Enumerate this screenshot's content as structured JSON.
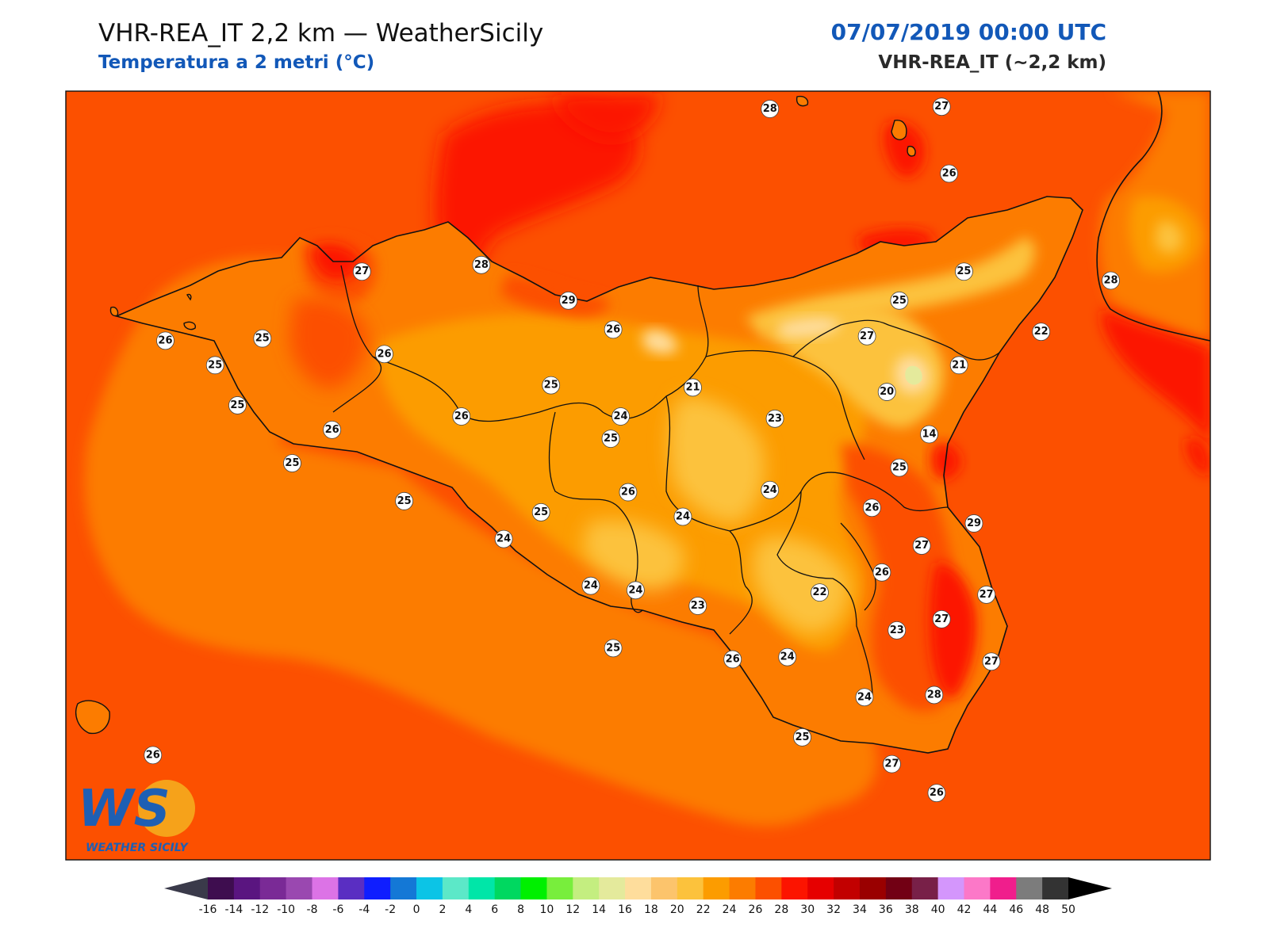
{
  "header": {
    "title": "VHR-REA_IT 2,2 km — WeatherSicily",
    "subtitle": "Temperatura a 2 metri (°C)",
    "datetime": "07/07/2019 00:00 UTC",
    "model": "VHR-REA_IT (~2,2 km)"
  },
  "logo": {
    "letters": "WS",
    "text": "WEATHER SICILY"
  },
  "colorbar": {
    "ticks": [
      "-16",
      "-14",
      "-12",
      "-10",
      "-8",
      "-6",
      "-4",
      "-2",
      "0",
      "2",
      "4",
      "6",
      "8",
      "10",
      "12",
      "14",
      "16",
      "18",
      "20",
      "22",
      "24",
      "26",
      "28",
      "30",
      "32",
      "34",
      "36",
      "38",
      "40",
      "42",
      "44",
      "46",
      "48",
      "50"
    ],
    "colors": [
      "#3e0d4f",
      "#5a1580",
      "#7a2a96",
      "#9a48b0",
      "#dc73e6",
      "#5a2ec2",
      "#0f1eff",
      "#1478d6",
      "#0cc4e6",
      "#5ce8c8",
      "#00e6a8",
      "#00d860",
      "#00f000",
      "#78ee3c",
      "#c4ee80",
      "#e4ea9c",
      "#fedd9c",
      "#fcc46c",
      "#fcc23c",
      "#fc9c00",
      "#fc7c00",
      "#fc5000",
      "#fc1400",
      "#e60000",
      "#c20000",
      "#9a0000",
      "#720014",
      "#782048",
      "#d496fc",
      "#fc78c8",
      "#f01e8c",
      "#7c7c7c",
      "#333333"
    ],
    "under_color": "#3a3a4a",
    "over_color": "#000000"
  },
  "stations": [
    {
      "v": "28",
      "lon": 14.53,
      "lat": 39.07
    },
    {
      "v": "27",
      "lon": 15.22,
      "lat": 39.08
    },
    {
      "v": "26",
      "lon": 15.25,
      "lat": 38.78
    },
    {
      "v": "27",
      "lon": 12.89,
      "lat": 38.34
    },
    {
      "v": "28",
      "lon": 13.37,
      "lat": 38.37
    },
    {
      "v": "29",
      "lon": 13.72,
      "lat": 38.21
    },
    {
      "v": "26",
      "lon": 13.9,
      "lat": 38.08
    },
    {
      "v": "27",
      "lon": 14.92,
      "lat": 38.05
    },
    {
      "v": "25",
      "lon": 15.31,
      "lat": 38.34
    },
    {
      "v": "25",
      "lon": 15.05,
      "lat": 38.21
    },
    {
      "v": "28",
      "lon": 15.9,
      "lat": 38.3
    },
    {
      "v": "22",
      "lon": 15.62,
      "lat": 38.07
    },
    {
      "v": "26",
      "lon": 12.1,
      "lat": 38.03
    },
    {
      "v": "25",
      "lon": 12.49,
      "lat": 38.04
    },
    {
      "v": "25",
      "lon": 12.3,
      "lat": 37.92
    },
    {
      "v": "26",
      "lon": 12.98,
      "lat": 37.97
    },
    {
      "v": "25",
      "lon": 13.65,
      "lat": 37.83
    },
    {
      "v": "21",
      "lon": 14.22,
      "lat": 37.82
    },
    {
      "v": "21",
      "lon": 15.29,
      "lat": 37.92
    },
    {
      "v": "20",
      "lon": 15.0,
      "lat": 37.8
    },
    {
      "v": "25",
      "lon": 12.39,
      "lat": 37.74
    },
    {
      "v": "26",
      "lon": 13.29,
      "lat": 37.69
    },
    {
      "v": "26",
      "lon": 12.77,
      "lat": 37.63
    },
    {
      "v": "24",
      "lon": 13.93,
      "lat": 37.69
    },
    {
      "v": "23",
      "lon": 14.55,
      "lat": 37.68
    },
    {
      "v": "25",
      "lon": 13.89,
      "lat": 37.59
    },
    {
      "v": "14",
      "lon": 15.17,
      "lat": 37.61
    },
    {
      "v": "25",
      "lon": 12.61,
      "lat": 37.48
    },
    {
      "v": "25",
      "lon": 15.05,
      "lat": 37.46
    },
    {
      "v": "26",
      "lon": 13.96,
      "lat": 37.35
    },
    {
      "v": "24",
      "lon": 14.53,
      "lat": 37.36
    },
    {
      "v": "25",
      "lon": 13.06,
      "lat": 37.31
    },
    {
      "v": "25",
      "lon": 13.61,
      "lat": 37.26
    },
    {
      "v": "24",
      "lon": 14.18,
      "lat": 37.24
    },
    {
      "v": "26",
      "lon": 14.94,
      "lat": 37.28
    },
    {
      "v": "29",
      "lon": 15.35,
      "lat": 37.21
    },
    {
      "v": "24",
      "lon": 13.46,
      "lat": 37.14
    },
    {
      "v": "27",
      "lon": 15.14,
      "lat": 37.11
    },
    {
      "v": "26",
      "lon": 14.98,
      "lat": 36.99
    },
    {
      "v": "24",
      "lon": 13.99,
      "lat": 36.91
    },
    {
      "v": "24",
      "lon": 13.81,
      "lat": 36.93
    },
    {
      "v": "22",
      "lon": 14.73,
      "lat": 36.9
    },
    {
      "v": "23",
      "lon": 14.24,
      "lat": 36.84
    },
    {
      "v": "27",
      "lon": 15.4,
      "lat": 36.89
    },
    {
      "v": "27",
      "lon": 15.22,
      "lat": 36.78
    },
    {
      "v": "23",
      "lon": 15.04,
      "lat": 36.73
    },
    {
      "v": "25",
      "lon": 13.9,
      "lat": 36.65
    },
    {
      "v": "26",
      "lon": 14.38,
      "lat": 36.6
    },
    {
      "v": "24",
      "lon": 14.6,
      "lat": 36.61
    },
    {
      "v": "27",
      "lon": 15.42,
      "lat": 36.59
    },
    {
      "v": "24",
      "lon": 14.91,
      "lat": 36.43
    },
    {
      "v": "28",
      "lon": 15.19,
      "lat": 36.44
    },
    {
      "v": "25",
      "lon": 14.66,
      "lat": 36.25
    },
    {
      "v": "26",
      "lon": 12.05,
      "lat": 36.17
    },
    {
      "v": "27",
      "lon": 15.02,
      "lat": 36.13
    },
    {
      "v": "26",
      "lon": 15.2,
      "lat": 36.0
    }
  ]
}
